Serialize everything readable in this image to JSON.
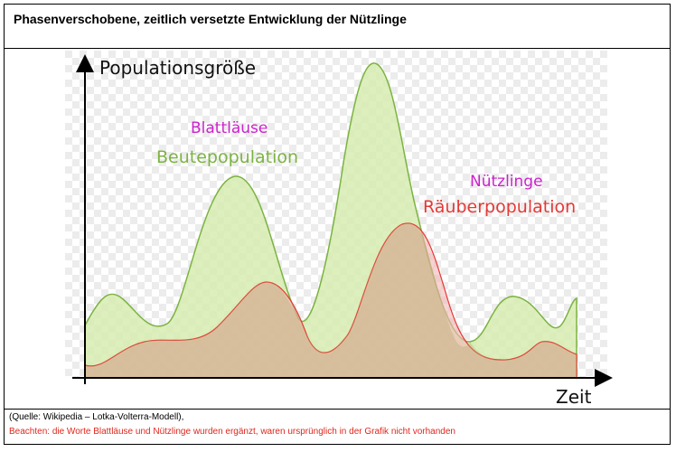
{
  "header": {
    "title": "Phasenverschobene, zeitlich versetzte Entwicklung der Nützlinge"
  },
  "figure": {
    "y_axis_label": "Populationsgröße",
    "x_axis_label": "Zeit",
    "prey_added_label": "Blattläuse",
    "prey_label": "Beutepopulation",
    "predator_added_label": "Nützlinge",
    "predator_label": "Räuberpopulation",
    "colors": {
      "prey_fill": "#d6ecb0",
      "prey_stroke": "#7cb342",
      "prey_text": "#7cb342",
      "predator_fill": "#f4b6b6",
      "predator_stroke": "#e53935",
      "predator_text": "#e53935",
      "added_text": "#cc22cc"
    }
  },
  "footer": {
    "source": "(Quelle: Wikipedia – Lotka-Volterra-Modell),",
    "note": "Beachten: die Worte Blattläuse und Nützlinge wurden ergänzt, waren ursprünglich in der Grafik nicht vorhanden"
  }
}
